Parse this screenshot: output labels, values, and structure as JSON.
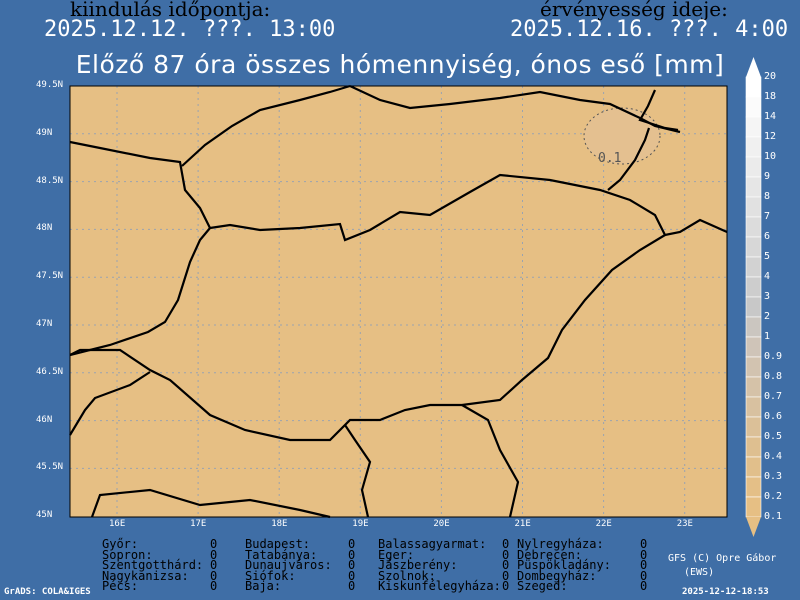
{
  "header": {
    "init_label": "kiindulás időpontja:",
    "init_value": "2025.12.12. ???. 13:00",
    "valid_label": "érvényesség ideje:",
    "valid_value": "2025.12.16. ???. 4:00"
  },
  "title": "Előző 87 óra összes hómennyiség, ónos eső [mm]",
  "map": {
    "lat_labels": [
      "49.5N",
      "49N",
      "48.5N",
      "48N",
      "47.5N",
      "47N",
      "46.5N",
      "46N",
      "45.5N",
      "45N"
    ],
    "lon_labels": [
      "16E",
      "17E",
      "18E",
      "19E",
      "20E",
      "21E",
      "22E",
      "23E"
    ],
    "contour_label": "0.1",
    "background_color": "#e6bf84",
    "border_color": "#000000"
  },
  "colorbar": {
    "labels": [
      "20",
      "18",
      "14",
      "12",
      "10",
      "9",
      "8",
      "7",
      "6",
      "5",
      "4",
      "3",
      "2",
      "1",
      "0.9",
      "0.8",
      "0.7",
      "0.6",
      "0.5",
      "0.4",
      "0.3",
      "0.2",
      "0.1"
    ],
    "colors": [
      "#ffffff",
      "#fbfbfb",
      "#f5f5f5",
      "#f0f0f0",
      "#ebebeb",
      "#e6e6e6",
      "#e1e1e1",
      "#dcdcdc",
      "#d7d7d7",
      "#d2d2d2",
      "#cdcdcd",
      "#c8c8c8",
      "#cbc6c0",
      "#cfc4b8",
      "#d2c3b0",
      "#d5c2a8",
      "#d8c1a0",
      "#dbc098",
      "#debf90",
      "#e1bf8b",
      "#e4bf87",
      "#e6bf84"
    ]
  },
  "stations": [
    [
      {
        "name": "Győr:",
        "value": "0"
      },
      {
        "name": "Sopron:",
        "value": "0"
      },
      {
        "name": "Szentgotthárd:",
        "value": "0"
      },
      {
        "name": "Nagykanizsa:",
        "value": "0"
      },
      {
        "name": "Pécs:",
        "value": "0"
      }
    ],
    [
      {
        "name": "Budapest:",
        "value": "0"
      },
      {
        "name": "Tatabánya:",
        "value": "0"
      },
      {
        "name": "Dunaujváros:",
        "value": "0"
      },
      {
        "name": "Siófok:",
        "value": "0"
      },
      {
        "name": "Baja:",
        "value": "0"
      }
    ],
    [
      {
        "name": "Balassagyarmat:",
        "value": "0"
      },
      {
        "name": "Eger:",
        "value": "0"
      },
      {
        "name": "Jászberény:",
        "value": "0"
      },
      {
        "name": "Szolnok:",
        "value": "0"
      },
      {
        "name": "Kiskunfélegyháza:",
        "value": "0"
      }
    ],
    [
      {
        "name": "Nylregyháza:",
        "value": "0"
      },
      {
        "name": "Debrecen:",
        "value": "0"
      },
      {
        "name": "Püspökladány:",
        "value": "0"
      },
      {
        "name": "Dombegyház:",
        "value": "0"
      },
      {
        "name": "Szeged:",
        "value": "0"
      }
    ]
  ],
  "footer": {
    "grads": "GrADS: COLA&IGES",
    "credit_line1": "GFS (C) Opre Gábor",
    "credit_line2": "(EWS)",
    "timestamp": "2025-12-12-18:53"
  }
}
